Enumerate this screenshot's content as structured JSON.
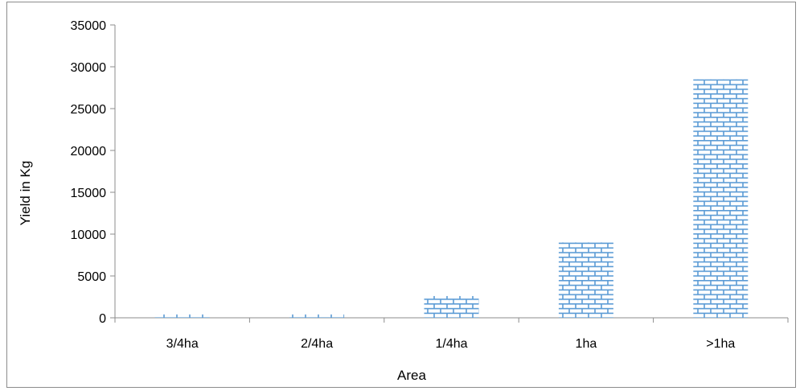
{
  "chart_data": {
    "type": "bar",
    "categories": [
      "3/4ha",
      "2/4ha",
      "1/4ha",
      "1ha",
      ">1ha"
    ],
    "values": [
      400,
      400,
      2600,
      9000,
      28500
    ],
    "title": "",
    "xlabel": "Area",
    "ylabel": "Yield in Kg",
    "ylim": [
      0,
      35000
    ],
    "yticks": [
      0,
      5000,
      10000,
      15000,
      20000,
      25000,
      30000,
      35000
    ],
    "ytick_labels": [
      "0",
      "5000",
      "10000",
      "15000",
      "20000",
      "25000",
      "30000",
      "35000"
    ],
    "grid": false,
    "legend": "none",
    "bar_pattern": "brick",
    "bar_color": "#5b9bd5"
  }
}
